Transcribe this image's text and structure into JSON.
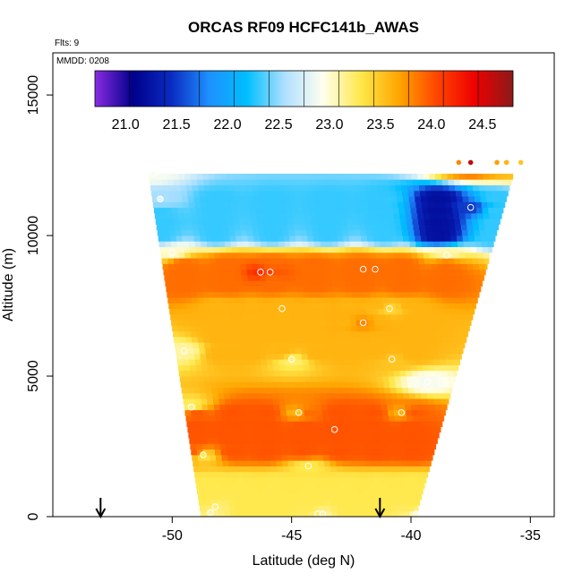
{
  "chart_data": {
    "type": "heatmap",
    "title": "ORCAS RF09 HCFC141b_AWAS",
    "annotations": {
      "flights": "Flts: 9",
      "date": "MMDD: 0208"
    },
    "xlabel": "Latitude (deg N)",
    "ylabel": "Altitude (m)",
    "xlim": [
      -55,
      -34
    ],
    "ylim": [
      0,
      16500
    ],
    "x_ticks": [
      -50,
      -45,
      -40,
      -35
    ],
    "x_tick_labels": [
      "-50",
      "-45",
      "-40",
      "-35"
    ],
    "y_ticks": [
      0,
      5000,
      10000,
      15000
    ],
    "y_tick_labels": [
      "0",
      "5000",
      "10000",
      "15000"
    ],
    "colorbar": {
      "range": [
        20.7,
        24.8
      ],
      "ticks": [
        21.0,
        21.5,
        22.0,
        22.5,
        23.0,
        23.5,
        24.0,
        24.5
      ],
      "tick_labels": [
        "21.0",
        "21.5",
        "22.0",
        "22.5",
        "23.0",
        "23.5",
        "24.0",
        "24.5"
      ],
      "placement": "top, inside plot"
    },
    "colors": {
      "scale": [
        "#8a2be2",
        "#00008b",
        "#0a2ac0",
        "#1e90ff",
        "#00bfff",
        "#b0e0ff",
        "#ffffee",
        "#ffe84a",
        "#ffa500",
        "#ff4500",
        "#ee0000",
        "#8b1a1a"
      ]
    },
    "domain": {
      "bottom_lat": [
        -48.8,
        -39.8
      ],
      "top_lat": [
        -51.0,
        -35.7
      ],
      "top_alt": 12200
    },
    "features": [
      {
        "name": "upper blue band",
        "lat": [
          -50.5,
          -36.5
        ],
        "alt": [
          10000,
          11300
        ],
        "value": 22.3,
        "core_lat": [
          -40.5,
          -37.0
        ],
        "core_value": 21.2
      },
      {
        "name": "orange band 8700m",
        "lat": [
          -49.5,
          -38.5
        ],
        "alt": [
          8200,
          9000
        ],
        "value": 23.9
      },
      {
        "name": "diagonal band",
        "lat": [
          -48.0,
          -40.0
        ],
        "alt": [
          5800,
          7500
        ],
        "value": 23.6
      },
      {
        "name": "orange band 3000m",
        "lat": [
          -49.0,
          -40.0
        ],
        "alt": [
          2300,
          3700
        ],
        "value": 24.0
      },
      {
        "name": "near-surface band",
        "lat": [
          -48.5,
          -40.0
        ],
        "alt": [
          0,
          1200
        ],
        "value": 23.3
      }
    ],
    "samples": [
      {
        "lat": -50.8,
        "alt": 12200,
        "value": 22.9
      },
      {
        "lat": -50.5,
        "alt": 11300,
        "value": 22.8
      },
      {
        "lat": -50.0,
        "alt": 9400,
        "value": 23.0
      },
      {
        "lat": -49.5,
        "alt": 5900,
        "value": 23.1
      },
      {
        "lat": -49.2,
        "alt": 3900,
        "value": 23.2
      },
      {
        "lat": -48.7,
        "alt": 2200,
        "value": 23.3
      },
      {
        "lat": -48.4,
        "alt": 150,
        "value": 23.1
      },
      {
        "lat": -48.2,
        "alt": 350,
        "value": 23.2
      },
      {
        "lat": -46.3,
        "alt": 8700,
        "value": 24.2
      },
      {
        "lat": -45.9,
        "alt": 8700,
        "value": 24.1
      },
      {
        "lat": -45.4,
        "alt": 7400,
        "value": 23.6
      },
      {
        "lat": -45.0,
        "alt": 5600,
        "value": 23.2
      },
      {
        "lat": -44.7,
        "alt": 3700,
        "value": 23.5
      },
      {
        "lat": -44.3,
        "alt": 1800,
        "value": 23.3
      },
      {
        "lat": -43.9,
        "alt": 100,
        "value": 23.2
      },
      {
        "lat": -43.7,
        "alt": 100,
        "value": 23.1
      },
      {
        "lat": -43.2,
        "alt": 3100,
        "value": 24.0
      },
      {
        "lat": -42.0,
        "alt": 6900,
        "value": 23.8
      },
      {
        "lat": -42.0,
        "alt": 8800,
        "value": 23.9
      },
      {
        "lat": -41.5,
        "alt": 8800,
        "value": 23.9
      },
      {
        "lat": -40.9,
        "alt": 7400,
        "value": 23.4
      },
      {
        "lat": -40.8,
        "alt": 5600,
        "value": 23.5
      },
      {
        "lat": -40.4,
        "alt": 3700,
        "value": 23.6
      },
      {
        "lat": -39.8,
        "alt": 100,
        "value": 23.0
      },
      {
        "lat": -39.3,
        "alt": 4800,
        "value": 22.9
      },
      {
        "lat": -38.5,
        "alt": 9300,
        "value": 23.1
      },
      {
        "lat": -37.5,
        "alt": 11000,
        "value": 21.5
      },
      {
        "lat": -37.5,
        "alt": 12600,
        "value": 24.6
      },
      {
        "lat": -38.0,
        "alt": 12600,
        "value": 23.8
      },
      {
        "lat": -36.4,
        "alt": 12600,
        "value": 23.7
      },
      {
        "lat": -36.0,
        "alt": 12600,
        "value": 23.6
      },
      {
        "lat": -35.4,
        "alt": 12600,
        "value": 23.5
      }
    ],
    "flight_markers_lat": [
      -53.0,
      -41.3
    ],
    "grid": false
  }
}
